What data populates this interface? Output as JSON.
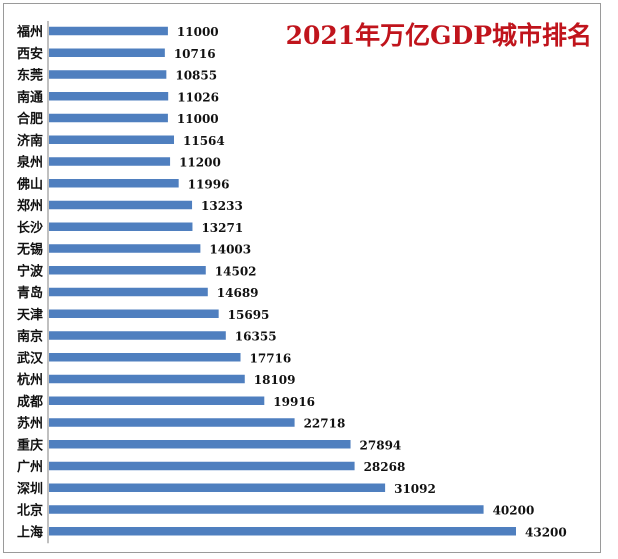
{
  "chart_data": {
    "type": "bar",
    "orientation": "horizontal",
    "title": "2021年万亿GDP城市排名",
    "xlabel": "",
    "ylabel": "",
    "xlim": [
      0,
      50000
    ],
    "grid": false,
    "legend": "none",
    "bar_color": "#4f7fbf",
    "title_color": "#c0141c",
    "categories": [
      "福州",
      "西安",
      "东莞",
      "南通",
      "合肥",
      "济南",
      "泉州",
      "佛山",
      "郑州",
      "长沙",
      "无锡",
      "宁波",
      "青岛",
      "天津",
      "南京",
      "武汉",
      "杭州",
      "成都",
      "苏州",
      "重庆",
      "广州",
      "深圳",
      "北京",
      "上海"
    ],
    "values": [
      11000,
      10716,
      10855,
      11026,
      11000,
      11564,
      11200,
      11996,
      13233,
      13271,
      14003,
      14502,
      14689,
      15695,
      16355,
      17716,
      18109,
      19916,
      22718,
      27894,
      28268,
      31092,
      40200,
      43200
    ]
  }
}
